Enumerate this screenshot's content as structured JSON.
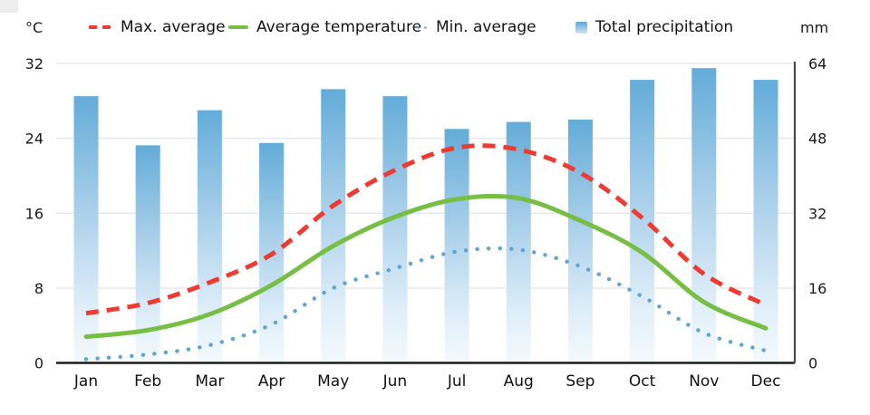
{
  "legend": {
    "left_unit": "°C",
    "right_unit": "mm",
    "items": [
      {
        "label": "Max. average",
        "marker": "dashed-line",
        "color": "#ee3a30"
      },
      {
        "label": "Average temperature",
        "marker": "solid-line",
        "color": "#76bf44"
      },
      {
        "label": "Min. average",
        "marker": "dotted-line",
        "color": "#5fa4d4"
      },
      {
        "label": "Total precipitation",
        "marker": "square",
        "color": "#63acd9"
      }
    ]
  },
  "chart_data": {
    "type": "combo-bar-line",
    "title": "",
    "categories": [
      "Jan",
      "Feb",
      "Mar",
      "Apr",
      "May",
      "Jun",
      "Jul",
      "Aug",
      "Sep",
      "Oct",
      "Nov",
      "Dec"
    ],
    "series": [
      {
        "name": "Max. average",
        "type": "line",
        "style": "dashed",
        "axis": "left",
        "color": "#ee3a30",
        "values": [
          5.3,
          6.4,
          8.6,
          11.6,
          16.8,
          20.6,
          23.0,
          22.8,
          20.3,
          15.5,
          9.5,
          6.2
        ]
      },
      {
        "name": "Average temperature",
        "type": "line",
        "style": "solid",
        "axis": "left",
        "color": "#76bf44",
        "values": [
          2.8,
          3.5,
          5.2,
          8.3,
          12.5,
          15.6,
          17.5,
          17.6,
          15.2,
          11.8,
          6.5,
          3.7
        ]
      },
      {
        "name": "Min. average",
        "type": "line",
        "style": "dotted",
        "axis": "left",
        "color": "#5fa4d4",
        "values": [
          0.4,
          0.9,
          1.9,
          4.1,
          8.0,
          10.1,
          11.9,
          12.1,
          10.3,
          7.1,
          3.2,
          1.3
        ]
      },
      {
        "name": "Total precipitation",
        "type": "bar",
        "axis": "right",
        "color_top": "#63acd9",
        "color_bottom": "#f1f8fd",
        "values": [
          57,
          46.5,
          54,
          47,
          58.5,
          57,
          50,
          51.5,
          52,
          60.5,
          63,
          60.5
        ]
      }
    ],
    "left_axis": {
      "unit": "°C",
      "range": [
        0,
        32
      ],
      "ticks": [
        0,
        8,
        16,
        24,
        32
      ]
    },
    "right_axis": {
      "unit": "mm",
      "range": [
        0,
        64
      ],
      "ticks": [
        0,
        16,
        32,
        48,
        64
      ]
    },
    "grid": true,
    "legend_position": "top"
  }
}
